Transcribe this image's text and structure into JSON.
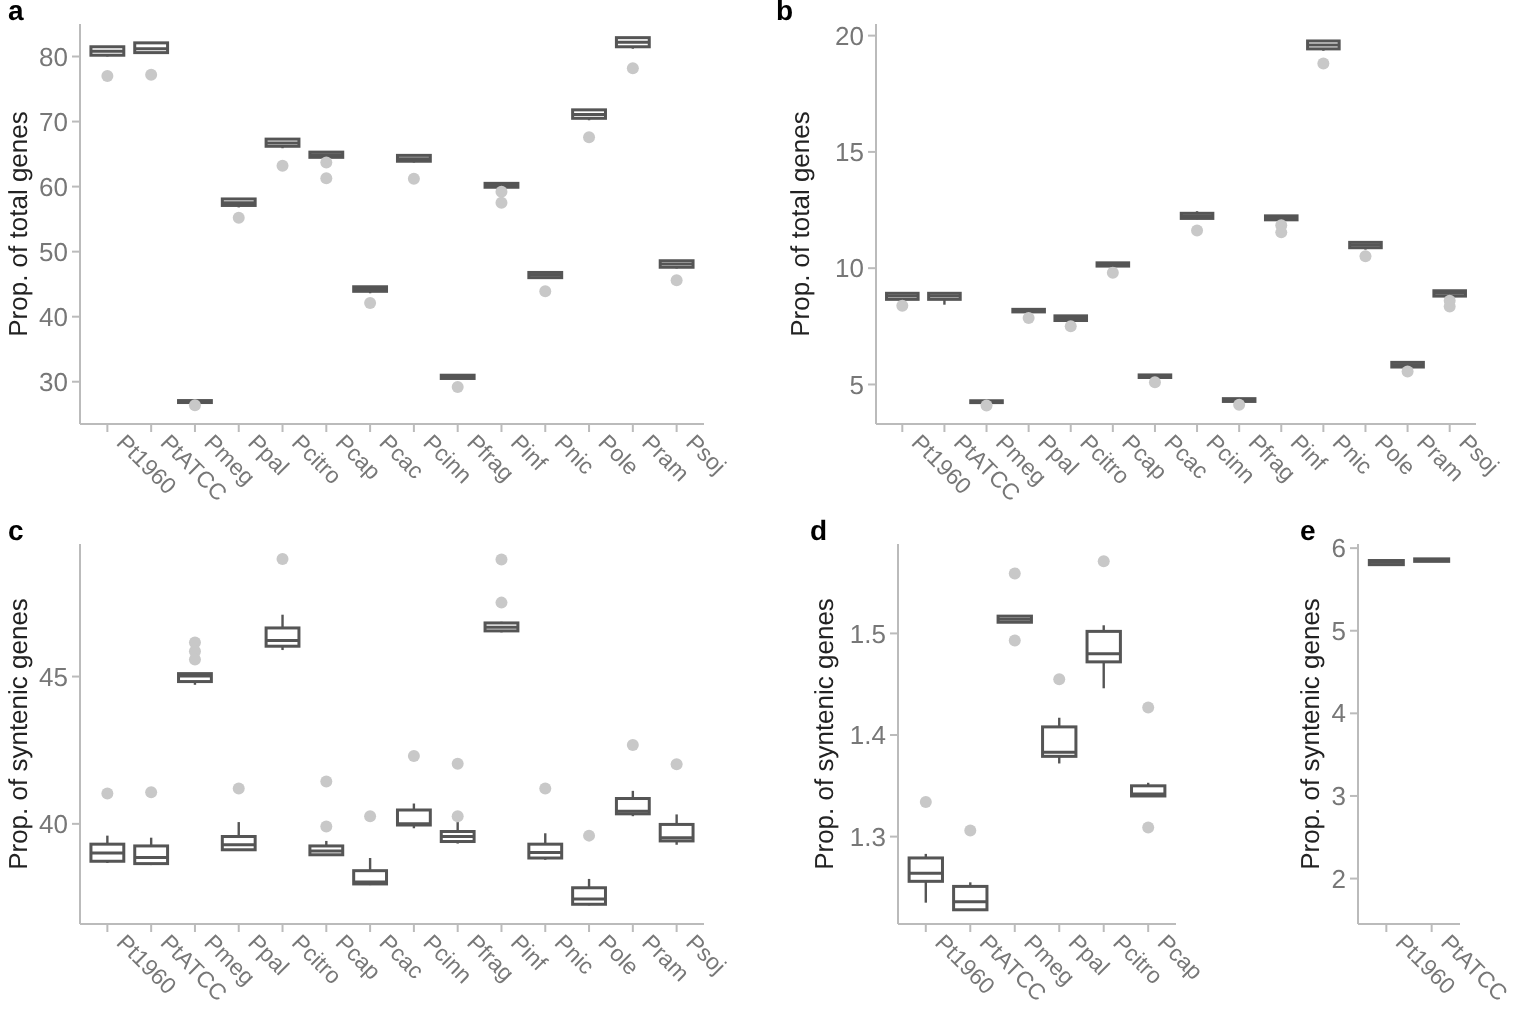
{
  "chart_data": [
    {
      "type": "box",
      "title": "a",
      "ylabel": "Prop. of total genes",
      "color": "#555555",
      "grid": false,
      "categories": [
        "Pt1960",
        "PtATCC",
        "Pmeg",
        "Ppal",
        "Pcitro",
        "Pcap",
        "Pcac",
        "Pcinn",
        "Pfrag",
        "Pinf",
        "Pnic",
        "Pole",
        "Pram",
        "Psoj"
      ],
      "ylim": [
        23.5,
        85
      ],
      "yticks": [
        30,
        40,
        50,
        60,
        70,
        80
      ],
      "boxes": [
        {
          "low": 80.0,
          "q1": 80.2,
          "median": 80.8,
          "q3": 81.5,
          "high": 81.5,
          "outliers": [
            77.0
          ]
        },
        {
          "low": 80.4,
          "q1": 80.6,
          "median": 81.2,
          "q3": 82.1,
          "high": 82.1,
          "outliers": [
            77.2
          ]
        },
        {
          "low": 26.8,
          "q1": 26.8,
          "median": 27.0,
          "q3": 27.1,
          "high": 27.1,
          "outliers": [
            26.4
          ]
        },
        {
          "low": 56.8,
          "q1": 57.1,
          "median": 57.5,
          "q3": 58.1,
          "high": 58.1,
          "outliers": [
            55.2
          ]
        },
        {
          "low": 65.9,
          "q1": 66.2,
          "median": 66.7,
          "q3": 67.3,
          "high": 67.3,
          "outliers": [
            63.2
          ]
        },
        {
          "low": 64.5,
          "q1": 64.5,
          "median": 64.9,
          "q3": 65.3,
          "high": 65.3,
          "outliers": [
            63.7,
            61.3
          ]
        },
        {
          "low": 43.6,
          "q1": 43.9,
          "median": 44.2,
          "q3": 44.6,
          "high": 44.6,
          "outliers": [
            42.1
          ]
        },
        {
          "low": 63.7,
          "q1": 63.9,
          "median": 64.3,
          "q3": 64.8,
          "high": 64.8,
          "outliers": [
            61.2
          ]
        },
        {
          "low": 30.5,
          "q1": 30.5,
          "median": 30.8,
          "q3": 31.0,
          "high": 31.0,
          "outliers": [
            29.2
          ]
        },
        {
          "low": 59.9,
          "q1": 59.9,
          "median": 60.2,
          "q3": 60.5,
          "high": 60.5,
          "outliers": [
            59.2,
            57.5
          ]
        },
        {
          "low": 45.8,
          "q1": 46.0,
          "median": 46.4,
          "q3": 46.8,
          "high": 46.8,
          "outliers": [
            43.9
          ]
        },
        {
          "low": 70.2,
          "q1": 70.5,
          "median": 71.1,
          "q3": 71.8,
          "high": 71.8,
          "outliers": [
            67.6
          ]
        },
        {
          "low": 81.2,
          "q1": 81.5,
          "median": 82.2,
          "q3": 82.9,
          "high": 82.9,
          "outliers": [
            78.2
          ]
        },
        {
          "low": 47.4,
          "q1": 47.6,
          "median": 48.1,
          "q3": 48.6,
          "high": 48.6,
          "outliers": [
            45.6
          ]
        }
      ]
    },
    {
      "type": "box",
      "title": "b",
      "ylabel": "Prop. of total genes",
      "color": "#555555",
      "grid": false,
      "categories": [
        "Pt1960",
        "PtATCC",
        "Pmeg",
        "Ppal",
        "Pcitro",
        "Pcap",
        "Pcac",
        "Pcinn",
        "Pfrag",
        "Pinf",
        "Pnic",
        "Pole",
        "Pram",
        "Psoj"
      ],
      "ylim": [
        3.3,
        20.5
      ],
      "yticks": [
        5,
        10,
        15,
        20
      ],
      "boxes": [
        {
          "low": 8.66,
          "q1": 8.66,
          "median": 8.8,
          "q3": 8.92,
          "high": 8.92,
          "outliers": [
            8.38
          ]
        },
        {
          "low": 8.43,
          "q1": 8.66,
          "median": 8.8,
          "q3": 8.92,
          "high": 8.92
        },
        {
          "low": 4.22,
          "q1": 4.22,
          "median": 4.26,
          "q3": 4.3,
          "high": 4.3,
          "outliers": [
            4.1
          ]
        },
        {
          "low": 8.12,
          "q1": 8.12,
          "median": 8.18,
          "q3": 8.23,
          "high": 8.23,
          "outliers": [
            7.86
          ]
        },
        {
          "low": 7.75,
          "q1": 7.75,
          "median": 7.85,
          "q3": 7.95,
          "high": 7.95,
          "outliers": [
            7.5
          ]
        },
        {
          "low": 10.09,
          "q1": 10.09,
          "median": 10.16,
          "q3": 10.23,
          "high": 10.23,
          "outliers": [
            9.8
          ]
        },
        {
          "low": 5.3,
          "q1": 5.3,
          "median": 5.36,
          "q3": 5.41,
          "high": 5.41,
          "outliers": [
            5.1
          ]
        },
        {
          "low": 12.1,
          "q1": 12.14,
          "median": 12.25,
          "q3": 12.36,
          "high": 12.45,
          "outliers": [
            11.62
          ]
        },
        {
          "low": 4.27,
          "q1": 4.27,
          "median": 4.33,
          "q3": 4.39,
          "high": 4.39,
          "outliers": [
            4.13
          ]
        },
        {
          "low": 12.08,
          "q1": 12.08,
          "median": 12.16,
          "q3": 12.25,
          "high": 12.25,
          "outliers": [
            11.85,
            11.54
          ]
        },
        {
          "low": 19.35,
          "q1": 19.43,
          "median": 19.6,
          "q3": 19.77,
          "high": 19.77,
          "outliers": [
            18.8
          ]
        },
        {
          "low": 10.8,
          "q1": 10.88,
          "median": 11.0,
          "q3": 11.11,
          "high": 11.11,
          "outliers": [
            10.51
          ]
        },
        {
          "low": 5.75,
          "q1": 5.75,
          "median": 5.85,
          "q3": 5.95,
          "high": 5.95,
          "outliers": [
            5.56
          ]
        },
        {
          "low": 8.8,
          "q1": 8.8,
          "median": 8.92,
          "q3": 9.03,
          "high": 9.03,
          "outliers": [
            8.6,
            8.35
          ]
        }
      ]
    },
    {
      "type": "box",
      "title": "c",
      "ylabel": "Prop. of syntenic genes",
      "color": "#555555",
      "grid": false,
      "categories": [
        "Pt1960",
        "PtATCC",
        "Pmeg",
        "Ppal",
        "Pcitro",
        "Pcap",
        "Pcac",
        "Pcinn",
        "Pfrag",
        "Pinf",
        "Pnic",
        "Pole",
        "Pram",
        "Psoj"
      ],
      "ylim": [
        36.6,
        49.5
      ],
      "yticks": [
        40,
        45
      ],
      "boxes": [
        {
          "low": 38.67,
          "q1": 38.73,
          "median": 39.01,
          "q3": 39.31,
          "high": 39.6,
          "outliers": [
            41.03
          ]
        },
        {
          "low": 38.6,
          "q1": 38.65,
          "median": 38.86,
          "q3": 39.25,
          "high": 39.53,
          "outliers": [
            41.07
          ]
        },
        {
          "low": 44.72,
          "q1": 44.83,
          "median": 45.02,
          "q3": 45.1,
          "high": 45.1,
          "outliers": [
            46.16,
            45.86,
            45.58
          ]
        },
        {
          "low": 39.08,
          "q1": 39.12,
          "median": 39.29,
          "q3": 39.57,
          "high": 40.06,
          "outliers": [
            41.2
          ]
        },
        {
          "low": 45.9,
          "q1": 46.03,
          "median": 46.22,
          "q3": 46.65,
          "high": 47.1,
          "outliers": [
            48.99
          ]
        },
        {
          "low": 38.93,
          "q1": 38.95,
          "median": 39.08,
          "q3": 39.25,
          "high": 39.42,
          "outliers": [
            41.44,
            39.91
          ]
        },
        {
          "low": 37.92,
          "q1": 37.96,
          "median": 38.03,
          "q3": 38.41,
          "high": 38.84,
          "outliers": [
            40.26
          ]
        },
        {
          "low": 39.85,
          "q1": 39.96,
          "median": 40.0,
          "q3": 40.47,
          "high": 40.69,
          "outliers": [
            42.3
          ]
        },
        {
          "low": 39.33,
          "q1": 39.4,
          "median": 39.57,
          "q3": 39.74,
          "high": 40.06,
          "outliers": [
            42.04,
            40.26
          ]
        },
        {
          "low": 46.5,
          "q1": 46.55,
          "median": 46.67,
          "q3": 46.82,
          "high": 46.86,
          "outliers": [
            48.97,
            47.51
          ]
        },
        {
          "low": 38.78,
          "q1": 38.84,
          "median": 39.03,
          "q3": 39.31,
          "high": 39.68,
          "outliers": [
            41.2
          ]
        },
        {
          "low": 37.23,
          "q1": 37.27,
          "median": 37.45,
          "q3": 37.83,
          "high": 38.13,
          "outliers": [
            39.6
          ]
        },
        {
          "low": 40.26,
          "q1": 40.34,
          "median": 40.43,
          "q3": 40.86,
          "high": 41.12,
          "outliers": [
            42.68
          ]
        },
        {
          "low": 39.29,
          "q1": 39.42,
          "median": 39.53,
          "q3": 39.98,
          "high": 40.32,
          "outliers": [
            42.02
          ]
        }
      ]
    },
    {
      "type": "box",
      "title": "d",
      "ylabel": "Prop. of syntenic genes",
      "color": "#555555",
      "grid": false,
      "categories": [
        "Pt1960",
        "PtATCC",
        "Pmeg",
        "Ppal",
        "Pcitro",
        "Pcap"
      ],
      "ylim": [
        1.214,
        1.588
      ],
      "yticks": [
        1.3,
        1.4,
        1.5
      ],
      "boxes": [
        {
          "low": 1.235,
          "q1": 1.256,
          "median": 1.264,
          "q3": 1.279,
          "high": 1.283,
          "outliers": [
            1.334
          ]
        },
        {
          "low": 1.228,
          "q1": 1.228,
          "median": 1.236,
          "q3": 1.251,
          "high": 1.255,
          "outliers": [
            1.306
          ]
        },
        {
          "low": 1.511,
          "q1": 1.511,
          "median": 1.514,
          "q3": 1.517,
          "high": 1.517,
          "outliers": [
            1.559,
            1.493
          ]
        },
        {
          "low": 1.372,
          "q1": 1.379,
          "median": 1.383,
          "q3": 1.408,
          "high": 1.417,
          "outliers": [
            1.455
          ]
        },
        {
          "low": 1.446,
          "q1": 1.472,
          "median": 1.48,
          "q3": 1.502,
          "high": 1.508,
          "outliers": [
            1.571
          ]
        },
        {
          "low": 1.34,
          "q1": 1.34,
          "median": 1.342,
          "q3": 1.35,
          "high": 1.353,
          "outliers": [
            1.427,
            1.309
          ]
        }
      ]
    },
    {
      "type": "box",
      "title": "e",
      "ylabel": "Prop. of syntenic genes",
      "color": "#555555",
      "grid": false,
      "categories": [
        "Pt1960",
        "PtATCC"
      ],
      "ylim": [
        1.45,
        6.05
      ],
      "yticks": [
        2,
        3,
        4,
        5,
        6
      ],
      "boxes": [
        {
          "low": 5.8,
          "q1": 5.8,
          "median": 5.83,
          "q3": 5.85,
          "high": 5.85
        },
        {
          "low": 5.84,
          "q1": 5.84,
          "median": 5.86,
          "q3": 5.87,
          "high": 5.87
        }
      ]
    }
  ]
}
